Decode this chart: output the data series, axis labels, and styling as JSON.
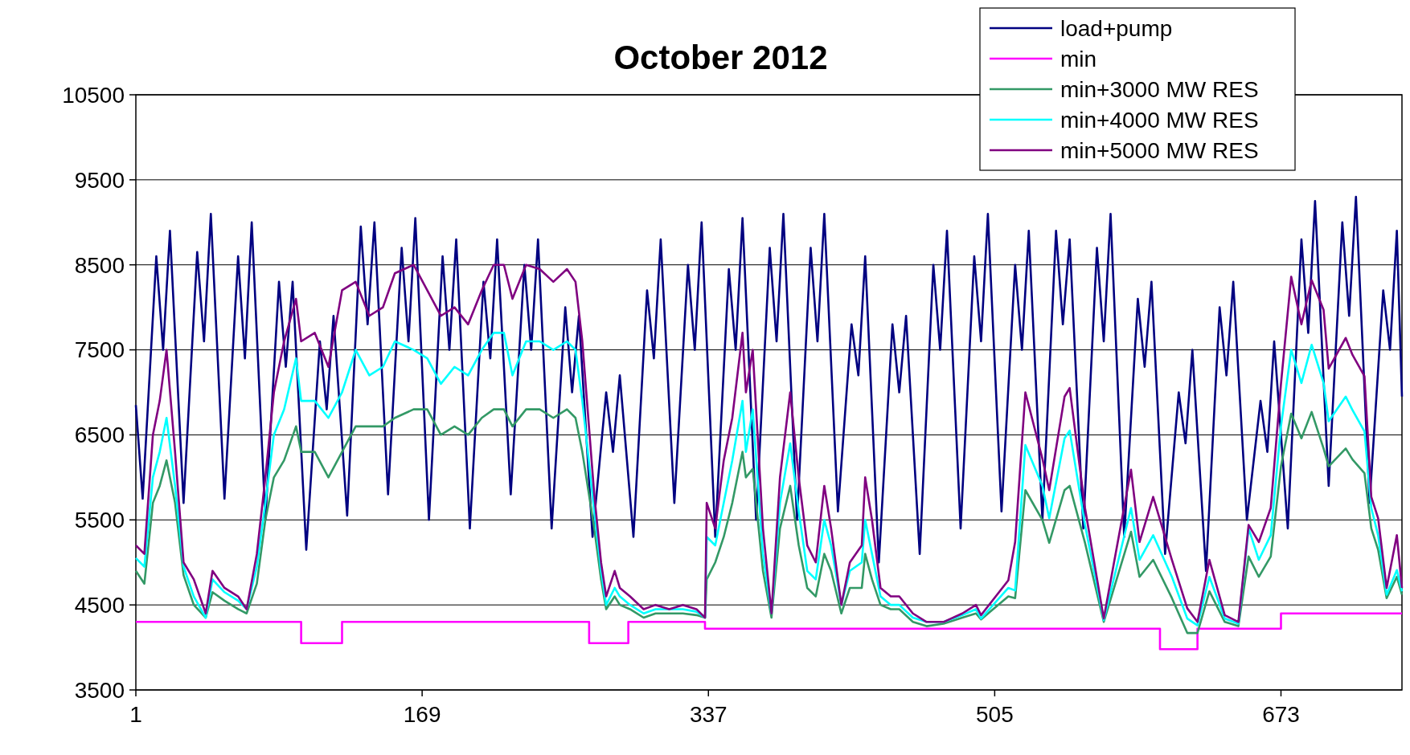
{
  "chart_data": {
    "type": "line",
    "title": "October 2012",
    "xlim": [
      1,
      744
    ],
    "xticks": [
      1,
      169,
      337,
      505,
      673
    ],
    "ylim": [
      3500,
      10500
    ],
    "yticks": [
      3500,
      4500,
      5500,
      6500,
      7500,
      8500,
      9500,
      10500
    ],
    "grid": "y",
    "legend": "top right",
    "marker": "none",
    "line_style": "solid",
    "series": [
      {
        "name": "load+pump",
        "color": "#000080",
        "x": [
          1,
          5,
          13,
          17,
          21,
          29,
          37,
          41,
          45,
          53,
          61,
          65,
          69,
          77,
          85,
          89,
          93,
          101,
          109,
          113,
          117,
          125,
          133,
          137,
          141,
          149,
          157,
          161,
          165,
          173,
          181,
          185,
          189,
          197,
          205,
          209,
          213,
          221,
          229,
          233,
          237,
          245,
          253,
          257,
          261,
          269,
          277,
          281,
          285,
          293,
          301,
          305,
          309,
          317,
          325,
          329,
          333,
          341,
          349,
          353,
          357,
          365,
          373,
          377,
          381,
          389,
          397,
          401,
          405,
          413,
          421,
          425,
          429,
          437,
          445,
          449,
          453,
          461,
          469,
          473,
          477,
          485,
          493,
          497,
          501,
          509,
          517,
          521,
          525,
          533,
          541,
          545,
          549,
          557,
          565,
          569,
          573,
          581,
          589,
          593,
          597,
          605,
          613,
          617,
          621,
          629,
          637,
          641,
          645,
          653,
          661,
          665,
          669,
          677,
          685,
          689,
          693,
          701,
          709,
          713,
          717,
          725,
          733,
          737,
          741,
          744
        ],
        "values": [
          6850,
          5750,
          8600,
          7500,
          8900,
          5700,
          8650,
          7600,
          9100,
          5750,
          8600,
          7400,
          9000,
          5500,
          8300,
          7300,
          8300,
          5150,
          7600,
          6800,
          7900,
          5550,
          8950,
          7800,
          9000,
          5800,
          8700,
          7600,
          9050,
          5500,
          8600,
          7500,
          8800,
          5400,
          8300,
          7400,
          8800,
          5800,
          8500,
          7500,
          8800,
          5400,
          8000,
          7000,
          7900,
          5300,
          7000,
          6300,
          7200,
          5300,
          8200,
          7400,
          8800,
          5700,
          8500,
          7500,
          9000,
          5300,
          8450,
          7500,
          9050,
          5500,
          8700,
          7600,
          9100,
          5500,
          8700,
          7600,
          9100,
          5600,
          7800,
          7200,
          8600,
          5000,
          7800,
          7000,
          7900,
          5100,
          8500,
          7500,
          8900,
          5400,
          8600,
          7600,
          9100,
          5600,
          8500,
          7500,
          8900,
          5500,
          8900,
          7800,
          8800,
          5400,
          8700,
          7600,
          9100,
          5300,
          8100,
          7300,
          8300,
          5100,
          7000,
          6400,
          7500,
          4900,
          8000,
          7200,
          8300,
          5500,
          6900,
          6300,
          7600,
          5400,
          8800,
          7700,
          9250,
          5900,
          9000,
          7900,
          9300,
          5700,
          8200,
          7500,
          8900,
          6950
        ]
      },
      {
        "name": "min",
        "color": "#ff00ff",
        "type": "step",
        "x": [
          1,
          98,
          122,
          267,
          290,
          335,
          602,
          624,
          673,
          744
        ],
        "values": [
          4300,
          4050,
          4300,
          4050,
          4300,
          4220,
          3980,
          4220,
          4400,
          4400
        ]
      },
      {
        "name": "min+3000 MW RES",
        "color": "#339966",
        "x": [
          1,
          6,
          11,
          15,
          19,
          24,
          29,
          35,
          42,
          46,
          53,
          61,
          66,
          72,
          77,
          82,
          88,
          95,
          98,
          106,
          114,
          122,
          130,
          138,
          146,
          153,
          164,
          172,
          180,
          188,
          196,
          204,
          211,
          217,
          222,
          230,
          238,
          246,
          254,
          259,
          263,
          270,
          274,
          277,
          282,
          285,
          291,
          299,
          306,
          314,
          322,
          330,
          335,
          336,
          341,
          346,
          351,
          357,
          359,
          363,
          369,
          374,
          379,
          385,
          390,
          395,
          400,
          405,
          409,
          415,
          420,
          427,
          429,
          433,
          438,
          444,
          449,
          457,
          465,
          475,
          486,
          494,
          497,
          513,
          517,
          523,
          533,
          537,
          546,
          549,
          558,
          569,
          585,
          590,
          598,
          609,
          618,
          624,
          631,
          640,
          648,
          654,
          660,
          667,
          673,
          679,
          685,
          691,
          698,
          701,
          711,
          715,
          722,
          726,
          730,
          735,
          741,
          744
        ],
        "values": [
          4900,
          4750,
          5700,
          5900,
          6200,
          5700,
          4850,
          4500,
          4350,
          4650,
          4550,
          4450,
          4400,
          4750,
          5500,
          6000,
          6200,
          6600,
          6300,
          6300,
          6000,
          6300,
          6600,
          6600,
          6600,
          6700,
          6800,
          6800,
          6500,
          6600,
          6500,
          6700,
          6800,
          6800,
          6600,
          6800,
          6800,
          6700,
          6800,
          6700,
          6300,
          5400,
          4800,
          4450,
          4600,
          4500,
          4450,
          4350,
          4400,
          4400,
          4400,
          4380,
          4350,
          4800,
          5000,
          5300,
          5700,
          6300,
          6000,
          6100,
          4900,
          4350,
          5400,
          5900,
          5200,
          4700,
          4600,
          5100,
          4900,
          4400,
          4700,
          4700,
          5100,
          4800,
          4500,
          4450,
          4450,
          4300,
          4250,
          4280,
          4350,
          4400,
          4330,
          4600,
          4580,
          5850,
          5500,
          5230,
          5850,
          5900,
          5230,
          4300,
          5360,
          4830,
          5030,
          4580,
          4170,
          4170,
          4660,
          4300,
          4250,
          5070,
          4830,
          5070,
          6130,
          6750,
          6460,
          6770,
          6340,
          6130,
          6340,
          6210,
          6050,
          5400,
          5150,
          4580,
          4830,
          4620
        ]
      },
      {
        "name": "min+4000 MW RES",
        "color": "#00ffff",
        "x": [
          1,
          6,
          11,
          15,
          19,
          24,
          29,
          35,
          42,
          46,
          53,
          61,
          66,
          72,
          77,
          82,
          88,
          95,
          98,
          106,
          114,
          122,
          130,
          138,
          146,
          153,
          164,
          172,
          180,
          188,
          196,
          204,
          211,
          217,
          222,
          230,
          238,
          246,
          254,
          259,
          263,
          270,
          274,
          277,
          282,
          285,
          291,
          299,
          306,
          314,
          322,
          330,
          335,
          336,
          341,
          346,
          351,
          357,
          359,
          363,
          369,
          374,
          379,
          385,
          390,
          395,
          400,
          405,
          409,
          415,
          420,
          427,
          429,
          433,
          438,
          444,
          449,
          457,
          465,
          475,
          486,
          494,
          497,
          513,
          517,
          523,
          533,
          537,
          546,
          549,
          558,
          569,
          585,
          590,
          598,
          609,
          618,
          624,
          631,
          640,
          648,
          654,
          660,
          667,
          673,
          679,
          685,
          691,
          698,
          701,
          711,
          715,
          722,
          726,
          730,
          735,
          741,
          744
        ],
        "values": [
          5050,
          4950,
          6000,
          6300,
          6700,
          5900,
          4950,
          4600,
          4350,
          4800,
          4650,
          4550,
          4450,
          4950,
          5700,
          6500,
          6800,
          7400,
          6900,
          6900,
          6700,
          7000,
          7500,
          7200,
          7300,
          7600,
          7500,
          7400,
          7100,
          7300,
          7200,
          7500,
          7700,
          7700,
          7200,
          7600,
          7600,
          7500,
          7600,
          7500,
          6900,
          5600,
          4900,
          4500,
          4700,
          4600,
          4500,
          4400,
          4450,
          4450,
          4450,
          4420,
          4350,
          5300,
          5200,
          5700,
          6200,
          6900,
          6300,
          6800,
          5100,
          4400,
          5700,
          6400,
          5600,
          4900,
          4800,
          5500,
          5200,
          4500,
          4900,
          5000,
          5500,
          5100,
          4600,
          4500,
          4500,
          4350,
          4300,
          4300,
          4380,
          4450,
          4340,
          4700,
          4670,
          6380,
          5900,
          5520,
          6460,
          6550,
          5440,
          4320,
          5640,
          5030,
          5320,
          4830,
          4340,
          4260,
          4830,
          4340,
          4280,
          5400,
          5030,
          5320,
          6600,
          7500,
          7110,
          7560,
          7110,
          6660,
          6950,
          6790,
          6540,
          5640,
          5320,
          4620,
          4910,
          4660
        ]
      },
      {
        "name": "min+5000 MW RES",
        "color": "#800080",
        "x": [
          1,
          6,
          11,
          15,
          19,
          24,
          29,
          35,
          42,
          46,
          53,
          61,
          66,
          72,
          77,
          82,
          88,
          95,
          98,
          106,
          114,
          122,
          130,
          138,
          146,
          153,
          164,
          172,
          180,
          188,
          196,
          204,
          211,
          217,
          222,
          230,
          238,
          246,
          254,
          259,
          263,
          270,
          274,
          277,
          282,
          285,
          291,
          299,
          306,
          314,
          322,
          330,
          335,
          336,
          341,
          346,
          351,
          357,
          359,
          363,
          369,
          374,
          379,
          385,
          390,
          395,
          400,
          405,
          409,
          415,
          420,
          427,
          429,
          433,
          438,
          444,
          449,
          457,
          465,
          475,
          486,
          494,
          497,
          513,
          517,
          523,
          533,
          537,
          546,
          549,
          558,
          569,
          585,
          590,
          598,
          609,
          618,
          624,
          631,
          640,
          648,
          654,
          660,
          667,
          673,
          679,
          685,
          691,
          698,
          701,
          711,
          715,
          722,
          726,
          730,
          735,
          741,
          744
        ],
        "values": [
          5200,
          5100,
          6500,
          6900,
          7500,
          6300,
          5000,
          4800,
          4400,
          4900,
          4700,
          4600,
          4450,
          5100,
          6000,
          7000,
          7600,
          8100,
          7600,
          7700,
          7300,
          8200,
          8300,
          7900,
          8000,
          8400,
          8500,
          8200,
          7900,
          8000,
          7800,
          8200,
          8500,
          8500,
          8100,
          8500,
          8450,
          8300,
          8450,
          8300,
          7600,
          5800,
          5000,
          4600,
          4900,
          4700,
          4600,
          4450,
          4500,
          4450,
          4500,
          4450,
          4350,
          5700,
          5400,
          6200,
          6700,
          7700,
          7000,
          7500,
          5400,
          4400,
          6000,
          7000,
          6000,
          5200,
          5000,
          5900,
          5400,
          4500,
          5000,
          5200,
          6000,
          5500,
          4700,
          4600,
          4600,
          4400,
          4300,
          4300,
          4400,
          4500,
          4380,
          4790,
          5240,
          7000,
          6220,
          5850,
          6950,
          7050,
          5640,
          4340,
          6090,
          5240,
          5770,
          5030,
          4460,
          4300,
          5030,
          4380,
          4300,
          5440,
          5240,
          5640,
          7100,
          8360,
          7800,
          8320,
          7970,
          7280,
          7640,
          7440,
          7190,
          5770,
          5520,
          4700,
          5320,
          4700
        ]
      }
    ]
  }
}
